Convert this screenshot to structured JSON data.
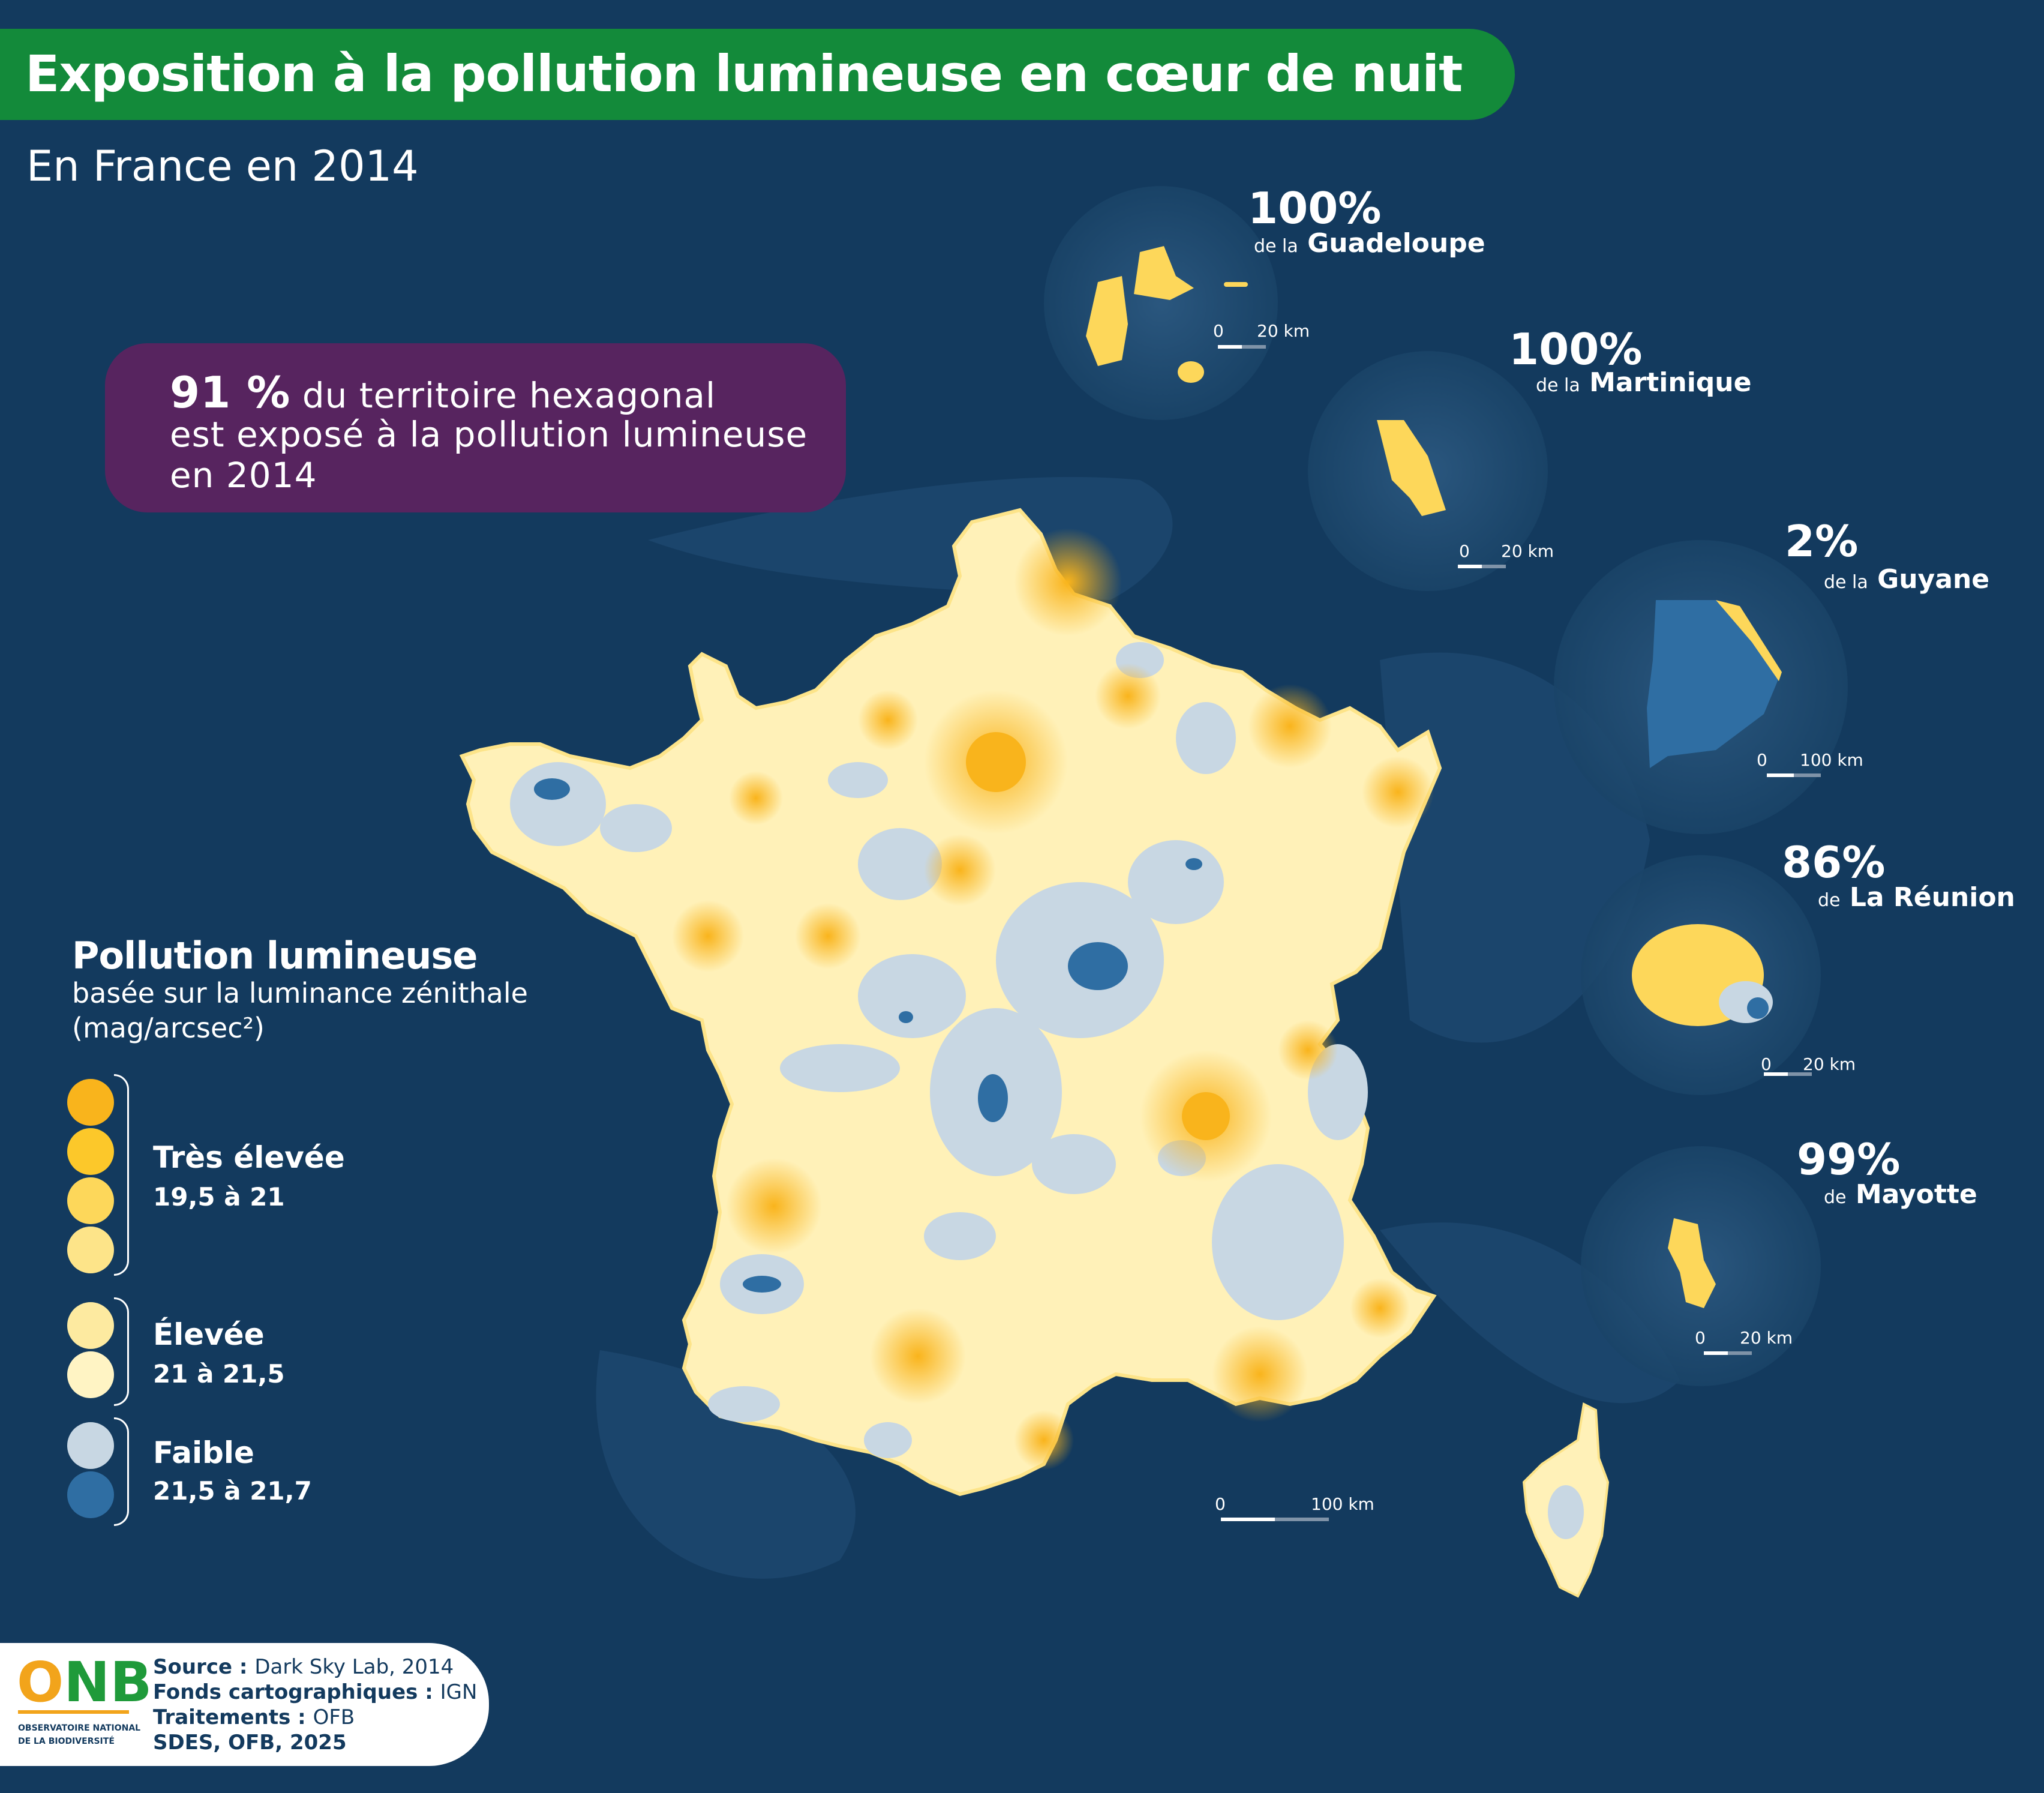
{
  "title": "Exposition à la pollution lumineuse en cœur de nuit",
  "subtitle": "En France en 2014",
  "highlight": {
    "value": "91 %",
    "text_1": " du territoire hexagonal",
    "text_2": "est exposé à la pollution lumineuse",
    "text_3": "en 2014"
  },
  "overseas": [
    {
      "percent": "100%",
      "prefix": "de la",
      "name": "Guadeloupe",
      "scale_zero": "0",
      "scale_label": "20 km"
    },
    {
      "percent": "100%",
      "prefix": "de la",
      "name": "Martinique",
      "scale_zero": "0",
      "scale_label": "20 km"
    },
    {
      "percent": "2%",
      "prefix": "de la",
      "name": "Guyane",
      "scale_zero": "0",
      "scale_label": "100 km"
    },
    {
      "percent": "86%",
      "prefix": "de",
      "name": "La Réunion",
      "scale_zero": "0",
      "scale_label": "20 km"
    },
    {
      "percent": "99%",
      "prefix": "de",
      "name": "Mayotte",
      "scale_zero": "0",
      "scale_label": "20 km"
    }
  ],
  "main_scale": {
    "zero": "0",
    "label": "100 km"
  },
  "legend": {
    "title": "Pollution lumineuse",
    "subtitle_1": "basée sur la luminance zénithale",
    "subtitle_2": "(mag/arcsec²)",
    "categories": [
      {
        "name": "Très élevée",
        "range": "19,5 à 21",
        "colors": [
          "#f9b41c",
          "#fcc82a",
          "#fdd75a",
          "#fde489"
        ]
      },
      {
        "name": "Élevée",
        "range": "21 à 21,5",
        "colors": [
          "#fdeaa0",
          "#fff4c4"
        ]
      },
      {
        "name": "Faible",
        "range": "21,5 à 21,7",
        "colors": [
          "#c8d7e3",
          "#2f6ea3"
        ]
      }
    ]
  },
  "source": {
    "source_label": "Source : ",
    "source_value": "Dark Sky Lab, 2014",
    "fonds_label": "Fonds cartographiques : ",
    "fonds_value": "IGN",
    "traitements_label": "Traitements : ",
    "traitements_value": "OFB",
    "credit": "SDES, OFB, 2025"
  },
  "logo": {
    "letters": "ONB",
    "line_1": "OBSERVATOIRE NATIONAL",
    "line_2": "DE LA BIODIVERSITÉ"
  },
  "colors": {
    "background": "#133a5e",
    "title_bar": "#138a3a",
    "stat_box": "#57245f",
    "very_high": "#fcc82a",
    "high": "#fff1b8",
    "low": "#c8d7e3",
    "lowest": "#2f6ea3"
  }
}
